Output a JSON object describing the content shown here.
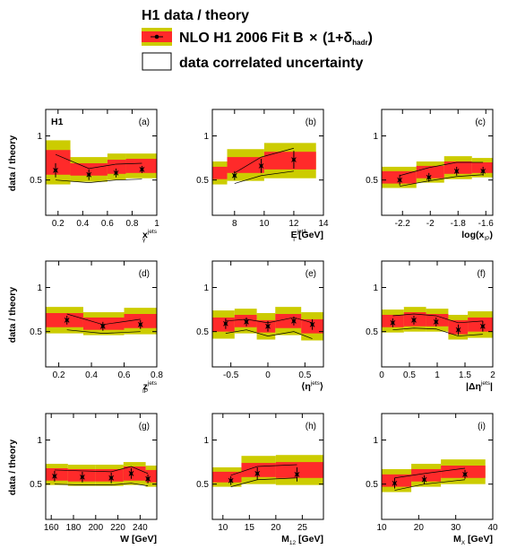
{
  "legend": {
    "title": "H1 data / theory",
    "entry_theory": "NLO H1 2006 Fit B × (1+δhadr)",
    "entry_theory_main": "NLO H1 2006 Fit B",
    "entry_theory_times": "×",
    "entry_theory_paren_open": "(1+δ",
    "entry_theory_sub": "hadr",
    "entry_theory_paren_close": ")",
    "entry_corr": "data correlated uncertainty"
  },
  "colors": {
    "inner_band": "#ff2a2a",
    "outer_band": "#cccc00",
    "data_marker": "#000000",
    "frame": "#000000"
  },
  "chart_data": [
    {
      "type": "scatter",
      "panel": "(a)",
      "experiment_label": "H1",
      "ylabel": "data / theory",
      "xlabel": {
        "main": "x",
        "sub": "γ",
        "sup": "jets",
        "suffix": ""
      },
      "xlim": [
        0.1,
        1.0
      ],
      "ylim": [
        0.1,
        1.3
      ],
      "xticks": [
        0.2,
        0.4,
        0.6,
        0.8,
        1.0
      ],
      "xtick_labels": [
        "0.2",
        "0.4",
        "0.6",
        "0.8",
        "1"
      ],
      "yticks": [
        0.5,
        1.0
      ],
      "ytick_labels": [
        "0.5",
        "1"
      ],
      "bins": [
        0.1,
        0.3,
        0.6,
        0.75,
        1.0
      ],
      "band_center": [
        0.7,
        0.62,
        0.65,
        0.66
      ],
      "inner_half": [
        0.14,
        0.07,
        0.08,
        0.08
      ],
      "outer_half": [
        0.25,
        0.14,
        0.15,
        0.14
      ],
      "corr_low": [
        0.5,
        0.47,
        0.5,
        0.51
      ],
      "corr_high": [
        0.79,
        0.63,
        0.68,
        0.69
      ],
      "x": [
        0.18,
        0.45,
        0.67,
        0.88
      ],
      "y": [
        0.61,
        0.56,
        0.58,
        0.62
      ],
      "yerr": [
        0.08,
        0.06,
        0.05,
        0.04
      ]
    },
    {
      "type": "scatter",
      "panel": "(b)",
      "experiment_label": "",
      "ylabel": "",
      "xlabel": {
        "main": "E",
        "sub": "T",
        "sup": "jet1",
        "suffix": " [GeV]"
      },
      "xlim": [
        6.5,
        14.0
      ],
      "ylim": [
        0.1,
        1.3
      ],
      "xticks": [
        8,
        10,
        12,
        14
      ],
      "xtick_labels": [
        "8",
        "10",
        "12",
        "14"
      ],
      "yticks": [
        0.5,
        1.0
      ],
      "ytick_labels": [
        "0.5",
        "1"
      ],
      "bins": [
        6.5,
        7.5,
        10.0,
        13.5
      ],
      "band_center": [
        0.58,
        0.67,
        0.72
      ],
      "inner_half": [
        0.07,
        0.09,
        0.1
      ],
      "outer_half": [
        0.13,
        0.18,
        0.2
      ],
      "corr_low": [
        0.46,
        0.55,
        0.6
      ],
      "corr_high": [
        0.58,
        0.76,
        0.86
      ],
      "x": [
        8.0,
        9.8,
        12.0
      ],
      "y": [
        0.55,
        0.66,
        0.73
      ],
      "yerr": [
        0.05,
        0.08,
        0.1
      ]
    },
    {
      "type": "scatter",
      "panel": "(c)",
      "experiment_label": "",
      "ylabel": "",
      "xlabel": {
        "main": "log(x",
        "sub": "IP",
        "sup": "",
        "suffix": ")"
      },
      "xlim": [
        -2.35,
        -1.55
      ],
      "ylim": [
        0.1,
        1.3
      ],
      "xticks": [
        -2.2,
        -2.0,
        -1.8,
        -1.6
      ],
      "xtick_labels": [
        "-2.2",
        "-2",
        "-1.8",
        "-1.6"
      ],
      "yticks": [
        0.5,
        1.0
      ],
      "ytick_labels": [
        "0.5",
        "1"
      ],
      "bins": [
        -2.35,
        -2.1,
        -1.9,
        -1.7,
        -1.55
      ],
      "band_center": [
        0.53,
        0.59,
        0.64,
        0.64
      ],
      "inner_half": [
        0.07,
        0.07,
        0.07,
        0.06
      ],
      "outer_half": [
        0.12,
        0.12,
        0.13,
        0.11
      ],
      "corr_low": [
        0.43,
        0.49,
        0.54,
        0.56
      ],
      "corr_high": [
        0.55,
        0.64,
        0.7,
        0.7
      ],
      "x": [
        -2.22,
        -2.01,
        -1.81,
        -1.62
      ],
      "y": [
        0.5,
        0.53,
        0.6,
        0.6
      ],
      "yerr": [
        0.06,
        0.05,
        0.05,
        0.05
      ]
    },
    {
      "type": "scatter",
      "panel": "(d)",
      "experiment_label": "",
      "ylabel": "data / theory",
      "xlabel": {
        "main": "z",
        "sub": "IP",
        "sup": "jets",
        "suffix": ""
      },
      "xlim": [
        0.12,
        0.8
      ],
      "ylim": [
        0.1,
        1.3
      ],
      "xticks": [
        0.2,
        0.4,
        0.6,
        0.8
      ],
      "xtick_labels": [
        "0.2",
        "0.4",
        "0.6",
        "0.8"
      ],
      "yticks": [
        0.5,
        1.0
      ],
      "ytick_labels": [
        "0.5",
        "1"
      ],
      "bins": [
        0.12,
        0.35,
        0.6,
        0.8
      ],
      "band_center": [
        0.63,
        0.59,
        0.62
      ],
      "inner_half": [
        0.08,
        0.07,
        0.08
      ],
      "outer_half": [
        0.15,
        0.13,
        0.15
      ],
      "corr_low": [
        0.52,
        0.48,
        0.5
      ],
      "corr_high": [
        0.7,
        0.58,
        0.64
      ],
      "x": [
        0.25,
        0.47,
        0.7
      ],
      "y": [
        0.63,
        0.56,
        0.58
      ],
      "yerr": [
        0.05,
        0.05,
        0.05
      ]
    },
    {
      "type": "scatter",
      "panel": "(e)",
      "experiment_label": "",
      "ylabel": "",
      "xlabel": {
        "main": "⟨η",
        "sub": "",
        "sup": "jets",
        "suffix": "⟩"
      },
      "xlim": [
        -0.75,
        0.75
      ],
      "ylim": [
        0.1,
        1.3
      ],
      "xticks": [
        -0.5,
        0.0,
        0.5
      ],
      "xtick_labels": [
        "-0.5",
        "0",
        "0.5"
      ],
      "yticks": [
        0.5,
        1.0
      ],
      "ytick_labels": [
        "0.5",
        "1"
      ],
      "bins": [
        -0.75,
        -0.45,
        -0.15,
        0.1,
        0.45,
        0.75
      ],
      "band_center": [
        0.58,
        0.62,
        0.56,
        0.62,
        0.56
      ],
      "inner_half": [
        0.08,
        0.07,
        0.07,
        0.08,
        0.08
      ],
      "outer_half": [
        0.16,
        0.14,
        0.15,
        0.16,
        0.16
      ],
      "corr_low": [
        0.48,
        0.52,
        0.45,
        0.5,
        0.42
      ],
      "corr_high": [
        0.62,
        0.64,
        0.6,
        0.66,
        0.6
      ],
      "x": [
        -0.57,
        -0.29,
        0.0,
        0.35,
        0.6
      ],
      "y": [
        0.59,
        0.61,
        0.56,
        0.62,
        0.58
      ],
      "yerr": [
        0.06,
        0.05,
        0.06,
        0.05,
        0.06
      ]
    },
    {
      "type": "scatter",
      "panel": "(f)",
      "experiment_label": "",
      "ylabel": "",
      "xlabel": {
        "main": "|Δη",
        "sub": "",
        "sup": "jets",
        "suffix": "|"
      },
      "xlim": [
        0.0,
        2.0
      ],
      "ylim": [
        0.1,
        1.3
      ],
      "xticks": [
        0,
        0.5,
        1.0,
        1.5,
        2.0
      ],
      "xtick_labels": [
        "0",
        "0.5",
        "1",
        "1.5",
        "2"
      ],
      "yticks": [
        0.5,
        1.0
      ],
      "ytick_labels": [
        "0.5",
        "1"
      ],
      "bins": [
        0.0,
        0.4,
        0.8,
        1.2,
        1.55,
        2.0
      ],
      "band_center": [
        0.62,
        0.64,
        0.63,
        0.55,
        0.58
      ],
      "inner_half": [
        0.07,
        0.08,
        0.07,
        0.08,
        0.08
      ],
      "outer_half": [
        0.13,
        0.14,
        0.13,
        0.14,
        0.15
      ],
      "corr_low": [
        0.52,
        0.54,
        0.53,
        0.45,
        0.47
      ],
      "corr_high": [
        0.68,
        0.7,
        0.68,
        0.6,
        0.62
      ],
      "x": [
        0.2,
        0.58,
        0.98,
        1.38,
        1.82
      ],
      "y": [
        0.6,
        0.63,
        0.61,
        0.52,
        0.56
      ],
      "yerr": [
        0.05,
        0.05,
        0.05,
        0.06,
        0.06
      ]
    },
    {
      "type": "scatter",
      "panel": "(g)",
      "experiment_label": "",
      "ylabel": "data / theory",
      "xlabel": {
        "main": "W",
        "sub": "",
        "sup": "",
        "suffix": " [GeV]"
      },
      "xlim": [
        155,
        255
      ],
      "ylim": [
        0.1,
        1.3
      ],
      "xticks": [
        160,
        180,
        200,
        220,
        240
      ],
      "xtick_labels": [
        "160",
        "180",
        "200",
        "220",
        "240"
      ],
      "yticks": [
        0.5,
        1.0
      ],
      "ytick_labels": [
        "0.5",
        "1"
      ],
      "bins": [
        155,
        175,
        200,
        225,
        245,
        255
      ],
      "band_center": [
        0.61,
        0.6,
        0.6,
        0.62,
        0.59
      ],
      "inner_half": [
        0.07,
        0.07,
        0.07,
        0.08,
        0.07
      ],
      "outer_half": [
        0.12,
        0.12,
        0.12,
        0.13,
        0.12
      ],
      "corr_low": [
        0.5,
        0.49,
        0.49,
        0.51,
        0.48
      ],
      "corr_high": [
        0.66,
        0.65,
        0.64,
        0.7,
        0.62
      ],
      "x": [
        163,
        188,
        214,
        232,
        247
      ],
      "y": [
        0.59,
        0.58,
        0.57,
        0.62,
        0.56
      ],
      "yerr": [
        0.06,
        0.06,
        0.06,
        0.06,
        0.05
      ]
    },
    {
      "type": "scatter",
      "panel": "(h)",
      "experiment_label": "",
      "ylabel": "",
      "xlabel": {
        "main": "M",
        "sub": "12",
        "sup": "",
        "suffix": " [GeV]"
      },
      "xlim": [
        8,
        29
      ],
      "ylim": [
        0.1,
        1.3
      ],
      "xticks": [
        10,
        15,
        20,
        25
      ],
      "xtick_labels": [
        "10",
        "15",
        "20",
        "25"
      ],
      "yticks": [
        0.5,
        1.0
      ],
      "ytick_labels": [
        "0.5",
        "1"
      ],
      "bins": [
        8,
        13.5,
        20,
        29
      ],
      "band_center": [
        0.58,
        0.66,
        0.66
      ],
      "inner_half": [
        0.06,
        0.08,
        0.09
      ],
      "outer_half": [
        0.11,
        0.16,
        0.17
      ],
      "corr_low": [
        0.47,
        0.55,
        0.57
      ],
      "corr_high": [
        0.6,
        0.7,
        0.72
      ],
      "x": [
        11.5,
        16.5,
        24.0
      ],
      "y": [
        0.54,
        0.62,
        0.61
      ],
      "yerr": [
        0.05,
        0.07,
        0.08
      ]
    },
    {
      "type": "scatter",
      "panel": "(i)",
      "experiment_label": "",
      "ylabel": "",
      "xlabel": {
        "main": "M",
        "sub": "X",
        "sup": "",
        "suffix": " [GeV]"
      },
      "xlim": [
        10,
        40
      ],
      "ylim": [
        0.1,
        1.3
      ],
      "xticks": [
        10,
        20,
        30,
        40
      ],
      "xtick_labels": [
        "10",
        "20",
        "30",
        "40"
      ],
      "yticks": [
        0.5,
        1.0
      ],
      "ytick_labels": [
        "0.5",
        "1"
      ],
      "bins": [
        10,
        18,
        26,
        38
      ],
      "band_center": [
        0.54,
        0.6,
        0.64
      ],
      "inner_half": [
        0.07,
        0.07,
        0.07
      ],
      "outer_half": [
        0.13,
        0.13,
        0.14
      ],
      "corr_low": [
        0.43,
        0.5,
        0.55
      ],
      "corr_high": [
        0.57,
        0.62,
        0.68
      ],
      "x": [
        13.5,
        21.5,
        32.5
      ],
      "y": [
        0.51,
        0.55,
        0.61
      ],
      "yerr": [
        0.06,
        0.05,
        0.05
      ]
    }
  ]
}
